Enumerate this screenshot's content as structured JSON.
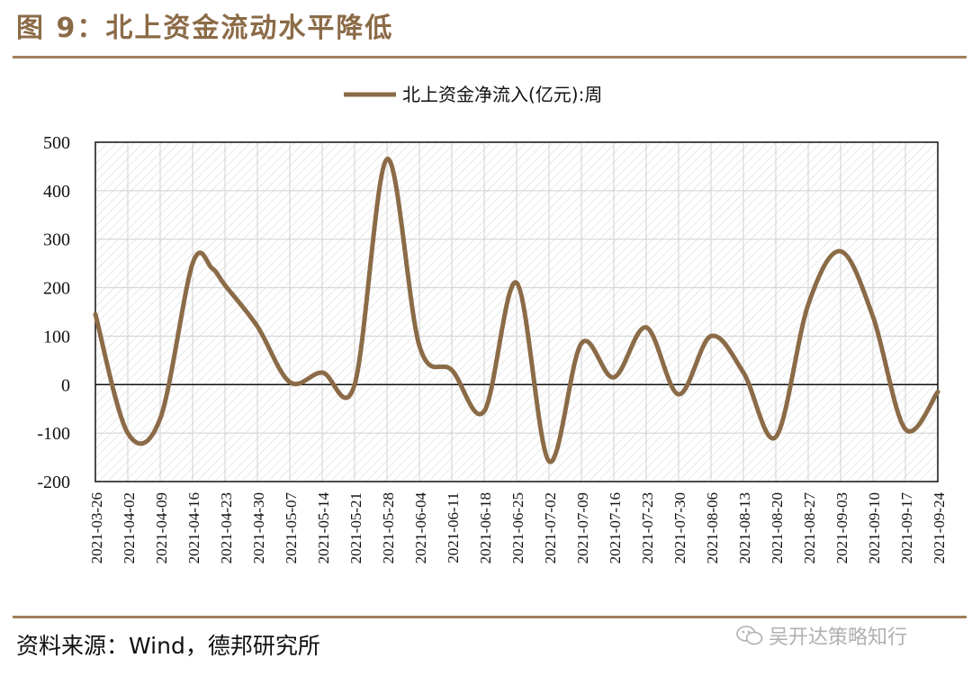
{
  "figure": {
    "title": "图 9：北上资金流动水平降低",
    "source": "资料来源：Wind，德邦研究所",
    "watermark": "吴开达策略知行",
    "watermark_icon": "wechat-icon"
  },
  "colors": {
    "accent": "#8B6B47",
    "series": "#8B6B47",
    "rule": "#A07F5C",
    "hatch": "#d9d9d9"
  },
  "chart_data": {
    "type": "line",
    "ylim": [
      -200,
      500
    ],
    "yticks": [
      -200,
      -100,
      0,
      100,
      200,
      300,
      400,
      500
    ],
    "grid": true,
    "legend_position": "top-center",
    "categories": [
      "2021-03-26",
      "2021-04-02",
      "2021-04-09",
      "2021-04-16",
      "2021-04-23",
      "2021-04-30",
      "2021-05-07",
      "2021-05-14",
      "2021-05-21",
      "2021-05-28",
      "2021-06-04",
      "2021-06-11",
      "2021-06-18",
      "2021-06-25",
      "2021-07-02",
      "2021-07-09",
      "2021-07-16",
      "2021-07-23",
      "2021-07-30",
      "2021-08-06",
      "2021-08-13",
      "2021-08-20",
      "2021-08-27",
      "2021-09-03",
      "2021-09-10",
      "2021-09-17",
      "2021-09-24"
    ],
    "series": [
      {
        "name": "北上资金净流入(亿元):周",
        "x": [
          0,
          1,
          2,
          3,
          3.6,
          4,
          5,
          6,
          7,
          8,
          9,
          10,
          11,
          12,
          13,
          14,
          15,
          16,
          17,
          18,
          19,
          20,
          21,
          22,
          23,
          24,
          25,
          26
        ],
        "values": [
          145,
          -100,
          -70,
          250,
          240,
          205,
          120,
          5,
          25,
          0,
          465,
          80,
          30,
          -55,
          210,
          -158,
          85,
          15,
          118,
          -20,
          100,
          25,
          -108,
          165,
          275,
          140,
          -92,
          -15
        ]
      }
    ]
  }
}
